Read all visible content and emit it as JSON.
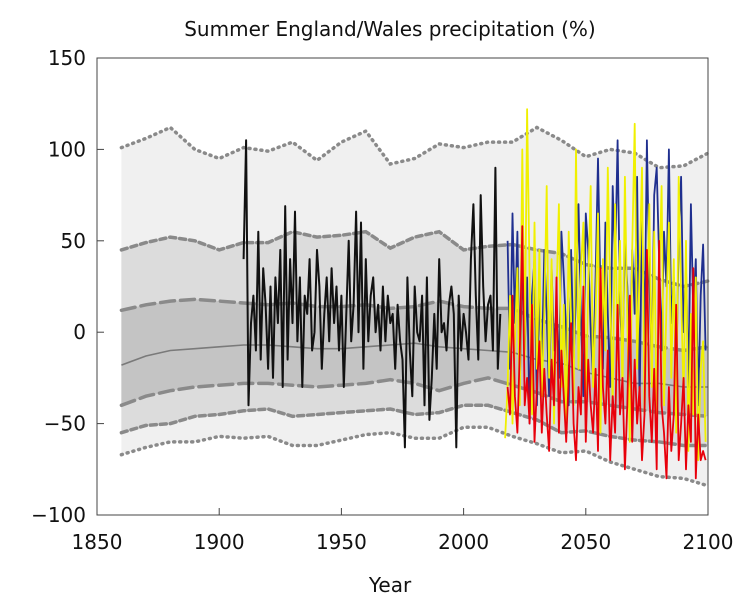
{
  "chart_data": {
    "type": "line",
    "title": "Summer England/Wales precipitation (%)",
    "xlabel": "Year",
    "ylabel": "",
    "xlim": [
      1850,
      2100
    ],
    "ylim": [
      -100,
      150
    ],
    "xticks": [
      1850,
      1900,
      1950,
      2000,
      2050,
      2100
    ],
    "yticks": [
      150,
      100,
      50,
      0,
      -50,
      -100
    ],
    "ytick_labels": [
      "150",
      "100",
      "50",
      "0",
      "−50",
      "−100"
    ],
    "grid": false,
    "legend": "none",
    "colors": {
      "observed": "#111111",
      "blue": "#1f2f8f",
      "yellow": "#f0f000",
      "red": "#e8000b",
      "band_outer": "#f0f0f0",
      "band_middle": "#dcdcdc",
      "band_inner": "#c4c4c4",
      "median": "#7a7a7a",
      "band_edge": "#8a8a8a"
    },
    "bands": {
      "years": [
        1860,
        1870,
        1880,
        1890,
        1900,
        1910,
        1920,
        1930,
        1940,
        1950,
        1960,
        1970,
        1980,
        1990,
        2000,
        2010,
        2020,
        2030,
        2040,
        2050,
        2060,
        2070,
        2080,
        2090,
        2100
      ],
      "outer_upper": [
        101,
        106,
        112,
        100,
        95,
        101,
        99,
        104,
        94,
        104,
        110,
        92,
        95,
        103,
        101,
        104,
        104,
        112,
        105,
        96,
        100,
        98,
        90,
        91,
        98
      ],
      "outer_lower": [
        -67,
        -63,
        -60,
        -60,
        -57,
        -58,
        -57,
        -62,
        -62,
        -59,
        -56,
        -55,
        -58,
        -58,
        -52,
        -52,
        -57,
        -61,
        -66,
        -65,
        -71,
        -75,
        -79,
        -80,
        -84
      ],
      "middle_upper": [
        45,
        49,
        52,
        50,
        45,
        49,
        49,
        55,
        52,
        53,
        55,
        46,
        52,
        55,
        45,
        47,
        48,
        45,
        43,
        37,
        35,
        35,
        29,
        25,
        28
      ],
      "middle_lower": [
        -55,
        -51,
        -50,
        -46,
        -45,
        -43,
        -42,
        -46,
        -45,
        -44,
        -43,
        -42,
        -45,
        -44,
        -40,
        -40,
        -44,
        -48,
        -55,
        -54,
        -57,
        -59,
        -60,
        -62,
        -62
      ],
      "inner_upper": [
        12,
        15,
        17,
        18,
        17,
        16,
        15,
        16,
        14,
        14,
        15,
        13,
        14,
        17,
        14,
        13,
        13,
        7,
        3,
        -2,
        -3,
        -5,
        -8,
        -10,
        -8
      ],
      "inner_lower": [
        -40,
        -35,
        -32,
        -30,
        -29,
        -28,
        -28,
        -29,
        -30,
        -29,
        -28,
        -26,
        -28,
        -32,
        -28,
        -25,
        -29,
        -33,
        -38,
        -38,
        -40,
        -42,
        -44,
        -45,
        -46
      ],
      "median": [
        -18,
        -13,
        -10,
        -9,
        -8,
        -7,
        -7,
        -8,
        -9,
        -9,
        -8,
        -7,
        -6,
        -8,
        -9,
        -10,
        -11,
        -15,
        -17,
        -22,
        -25,
        -28,
        -28,
        -30,
        -30
      ]
    },
    "series": [
      {
        "id": "observed",
        "x": [
          1910,
          1911,
          1912,
          1913,
          1914,
          1915,
          1916,
          1917,
          1918,
          1919,
          1920,
          1921,
          1922,
          1923,
          1924,
          1925,
          1926,
          1927,
          1928,
          1929,
          1930,
          1931,
          1932,
          1933,
          1934,
          1935,
          1936,
          1937,
          1938,
          1939,
          1940,
          1941,
          1942,
          1943,
          1944,
          1945,
          1946,
          1947,
          1948,
          1949,
          1950,
          1951,
          1952,
          1953,
          1954,
          1955,
          1956,
          1957,
          1958,
          1959,
          1960,
          1961,
          1962,
          1963,
          1964,
          1965,
          1966,
          1967,
          1968,
          1969,
          1970,
          1971,
          1972,
          1973,
          1974,
          1975,
          1976,
          1977,
          1978,
          1979,
          1980,
          1981,
          1982,
          1983,
          1984,
          1985,
          1986,
          1987,
          1988,
          1989,
          1990,
          1991,
          1992,
          1993,
          1994,
          1995,
          1996,
          1997,
          1998,
          1999,
          2000,
          2001,
          2002,
          2003,
          2004,
          2005,
          2006,
          2007,
          2008,
          2009,
          2010,
          2011,
          2012,
          2013,
          2014,
          2015
        ],
        "y": [
          40,
          105,
          -40,
          5,
          20,
          -10,
          55,
          -15,
          35,
          15,
          -20,
          25,
          -25,
          30,
          5,
          45,
          -30,
          69,
          -15,
          40,
          5,
          66,
          -5,
          30,
          -30,
          20,
          10,
          40,
          -10,
          0,
          45,
          25,
          -20,
          10,
          30,
          -5,
          35,
          5,
          25,
          -10,
          20,
          -30,
          10,
          50,
          -5,
          15,
          66,
          0,
          60,
          -20,
          40,
          -5,
          20,
          30,
          0,
          15,
          -10,
          25,
          -5,
          20,
          5,
          10,
          -20,
          15,
          -5,
          -15,
          -63,
          30,
          -10,
          -35,
          25,
          0,
          -5,
          20,
          -40,
          30,
          -48,
          -25,
          10,
          -20,
          40,
          0,
          5,
          -10,
          15,
          25,
          10,
          -63,
          20,
          -10,
          10,
          0,
          -15,
          40,
          70,
          20,
          -15,
          75,
          25,
          -5,
          15,
          20,
          -10,
          90,
          -20,
          10
        ]
      },
      {
        "id": "blue",
        "x": [
          2018,
          2019,
          2020,
          2021,
          2022,
          2023,
          2024,
          2025,
          2026,
          2027,
          2028,
          2029,
          2030,
          2031,
          2032,
          2033,
          2034,
          2035,
          2036,
          2037,
          2038,
          2039,
          2040,
          2041,
          2042,
          2043,
          2044,
          2045,
          2046,
          2047,
          2048,
          2049,
          2050,
          2051,
          2052,
          2053,
          2054,
          2055,
          2056,
          2057,
          2058,
          2059,
          2060,
          2061,
          2062,
          2063,
          2064,
          2065,
          2066,
          2067,
          2068,
          2069,
          2070,
          2071,
          2072,
          2073,
          2074,
          2075,
          2076,
          2077,
          2078,
          2079,
          2080,
          2081,
          2082,
          2083,
          2084,
          2085,
          2086,
          2087,
          2088,
          2089,
          2090,
          2091,
          2092,
          2093,
          2094,
          2095,
          2096,
          2097,
          2098,
          2099
        ],
        "y": [
          50,
          -20,
          65,
          5,
          55,
          -30,
          40,
          -10,
          30,
          -50,
          20,
          40,
          -40,
          25,
          -20,
          45,
          10,
          -35,
          35,
          -10,
          15,
          -25,
          55,
          30,
          0,
          -40,
          45,
          -15,
          20,
          70,
          10,
          -35,
          65,
          45,
          0,
          -25,
          30,
          95,
          20,
          -20,
          60,
          10,
          -30,
          80,
          35,
          105,
          15,
          -15,
          50,
          25,
          -30,
          45,
          10,
          85,
          -40,
          65,
          -5,
          105,
          30,
          -20,
          75,
          90,
          40,
          -10,
          55,
          25,
          100,
          5,
          30,
          -25,
          50,
          85,
          0,
          35,
          -30,
          70,
          10,
          40,
          -40,
          20,
          48,
          -10
        ]
      },
      {
        "id": "yellow",
        "x": [
          2017,
          2018,
          2019,
          2020,
          2021,
          2022,
          2023,
          2024,
          2025,
          2026,
          2027,
          2028,
          2029,
          2030,
          2031,
          2032,
          2033,
          2034,
          2035,
          2036,
          2037,
          2038,
          2039,
          2040,
          2041,
          2042,
          2043,
          2044,
          2045,
          2046,
          2047,
          2048,
          2049,
          2050,
          2051,
          2052,
          2053,
          2054,
          2055,
          2056,
          2057,
          2058,
          2059,
          2060,
          2061,
          2062,
          2063,
          2064,
          2065,
          2066,
          2067,
          2068,
          2069,
          2070,
          2071,
          2072,
          2073,
          2074,
          2075,
          2076,
          2077,
          2078,
          2079,
          2080,
          2081,
          2082,
          2083,
          2084,
          2085,
          2086,
          2087,
          2088,
          2089,
          2090,
          2091,
          2092,
          2093,
          2094,
          2095,
          2096,
          2097,
          2098,
          2099
        ],
        "y": [
          -58,
          -30,
          20,
          -50,
          -5,
          35,
          -40,
          100,
          -15,
          122,
          30,
          -45,
          60,
          -20,
          45,
          -35,
          10,
          80,
          -25,
          40,
          -50,
          20,
          70,
          -30,
          15,
          -55,
          55,
          5,
          -40,
          100,
          -20,
          35,
          60,
          -45,
          25,
          80,
          -30,
          10,
          65,
          -55,
          40,
          -10,
          90,
          20,
          -40,
          70,
          -15,
          50,
          -35,
          85,
          5,
          -60,
          45,
          114,
          -20,
          35,
          90,
          -45,
          10,
          70,
          -30,
          55,
          -50,
          25,
          80,
          -40,
          15,
          60,
          -25,
          40,
          -55,
          85,
          20,
          -35,
          50,
          -65,
          10,
          -45,
          30,
          -70,
          -20,
          -5,
          -60
        ]
      },
      {
        "id": "red",
        "x": [
          2018,
          2019,
          2020,
          2021,
          2022,
          2023,
          2024,
          2025,
          2026,
          2027,
          2028,
          2029,
          2030,
          2031,
          2032,
          2033,
          2034,
          2035,
          2036,
          2037,
          2038,
          2039,
          2040,
          2041,
          2042,
          2043,
          2044,
          2045,
          2046,
          2047,
          2048,
          2049,
          2050,
          2051,
          2052,
          2053,
          2054,
          2055,
          2056,
          2057,
          2058,
          2059,
          2060,
          2061,
          2062,
          2063,
          2064,
          2065,
          2066,
          2067,
          2068,
          2069,
          2070,
          2071,
          2072,
          2073,
          2074,
          2075,
          2076,
          2077,
          2078,
          2079,
          2080,
          2081,
          2082,
          2083,
          2084,
          2085,
          2086,
          2087,
          2088,
          2089,
          2090,
          2091,
          2092,
          2093,
          2094,
          2095,
          2096,
          2097,
          2098,
          2099
        ],
        "y": [
          -30,
          -45,
          20,
          -35,
          -55,
          -10,
          58,
          -40,
          -25,
          -50,
          15,
          -60,
          -30,
          -5,
          -55,
          -20,
          -45,
          -65,
          -15,
          -40,
          30,
          -55,
          -10,
          -35,
          -60,
          -25,
          5,
          -50,
          -70,
          -30,
          -45,
          25,
          -60,
          -15,
          -40,
          -55,
          -20,
          -65,
          35,
          -30,
          -50,
          -10,
          -70,
          -35,
          -55,
          15,
          -45,
          -25,
          -75,
          -40,
          20,
          -60,
          -15,
          -50,
          -30,
          -70,
          -45,
          45,
          -35,
          -60,
          -20,
          -75,
          50,
          -40,
          -55,
          -80,
          -30,
          -65,
          -45,
          15,
          -70,
          -50,
          -25,
          -75,
          -40,
          -60,
          35,
          -80,
          -45,
          -70,
          -65,
          -70
        ]
      }
    ]
  }
}
